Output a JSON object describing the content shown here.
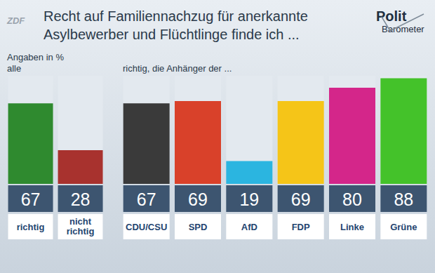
{
  "chart_data": [
    {
      "type": "bar",
      "title": "Recht auf Familiennachzug für anerkannte Asylbewerber und Flüchtlinge finde ich ...",
      "subtitle": "Angaben in %",
      "xlabel": "alle",
      "annotations": [
        "Polit",
        "Barometer",
        "ZDF"
      ],
      "categories": [
        "richtig",
        "nicht richtig"
      ],
      "values": [
        67,
        28
      ],
      "colors": [
        "#2f8a2f",
        "#a8322e"
      ],
      "ylim": [
        0,
        90
      ],
      "tick_labels": "x",
      "data_labels": true
    },
    {
      "type": "bar",
      "xlabel": "richtig, die Anhänger der ...",
      "categories": [
        "CDU/CSU",
        "SPD",
        "AfD",
        "FDP",
        "Linke",
        "Grüne"
      ],
      "values": [
        67,
        69,
        19,
        69,
        80,
        88
      ],
      "colors": [
        "#3a3a3a",
        "#d9412a",
        "#2bb5e0",
        "#f5c518",
        "#d4268a",
        "#44c22a"
      ],
      "ylim": [
        0,
        90
      ],
      "tick_labels": "x",
      "data_labels": true
    }
  ]
}
